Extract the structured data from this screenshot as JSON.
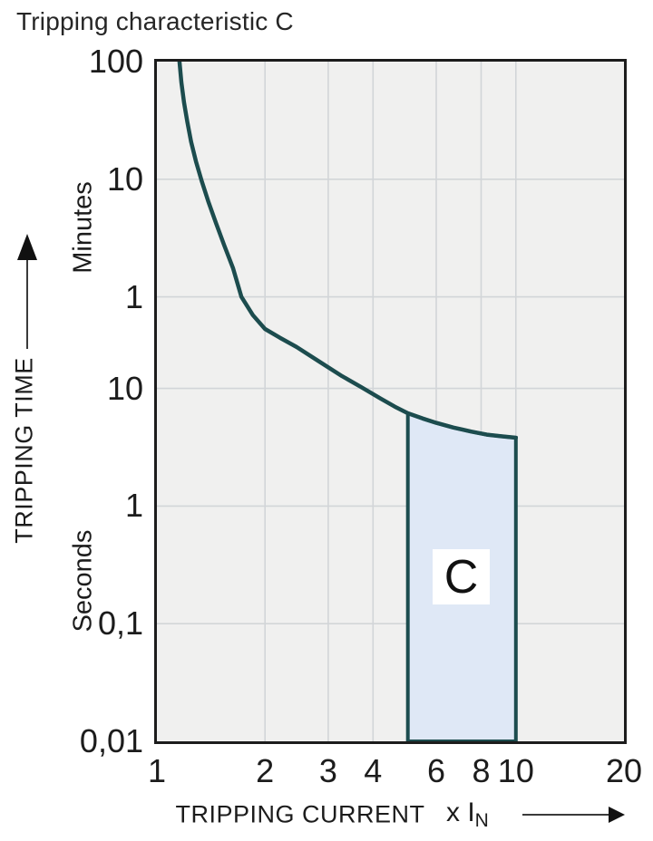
{
  "title": "Tripping characteristic C",
  "colors": {
    "curve": "#1c4c4e",
    "region_fill": "#dfe8f6",
    "region_border": "#1c4c4e",
    "plot_background": "#f0f0ef",
    "grid": "#d2d5d8",
    "plot_border": "#1c1c1c",
    "text": "#1c1c1c"
  },
  "y_axis": {
    "caption": "TRIPPING TIME",
    "unit_top": "Minutes",
    "unit_bottom": "Seconds",
    "ticks": [
      {
        "label": "100",
        "seconds": 6000,
        "unit": "minutes"
      },
      {
        "label": "10",
        "seconds": 600,
        "unit": "minutes"
      },
      {
        "label": "1",
        "seconds": 60,
        "unit": "minutes"
      },
      {
        "label": "10",
        "seconds": 10,
        "unit": "seconds"
      },
      {
        "label": "1",
        "seconds": 1,
        "unit": "seconds"
      },
      {
        "label": "0,1",
        "seconds": 0.1,
        "unit": "seconds"
      },
      {
        "label": "0,01",
        "seconds": 0.01,
        "unit": "seconds"
      }
    ]
  },
  "x_axis": {
    "caption": "TRIPPING CURRENT",
    "multiplier_label": "x I",
    "multiplier_sub": "N",
    "ticks": [
      {
        "label": "1",
        "x": 1
      },
      {
        "label": "2",
        "x": 2
      },
      {
        "label": "3",
        "x": 3
      },
      {
        "label": "4",
        "x": 4
      },
      {
        "label": "6",
        "x": 6
      },
      {
        "label": "8",
        "x": 8
      },
      {
        "label": "10",
        "x": 10
      },
      {
        "label": "20",
        "x": 20
      }
    ]
  },
  "chart_data": {
    "type": "line",
    "title": "Tripping characteristic C",
    "xlabel": "TRIPPING CURRENT (x IN)",
    "ylabel": "TRIPPING TIME",
    "x_scale": "log",
    "y_scale": "log",
    "x_range": [
      1,
      20
    ],
    "time_range_seconds": [
      0.01,
      6000
    ],
    "grid_x": [
      2,
      3,
      4,
      6,
      8,
      10
    ],
    "grid_t_seconds": [
      600,
      60,
      10,
      1,
      0.1
    ],
    "curve": {
      "name": "C tripping curve",
      "points_x_multiple_vs_seconds": [
        [
          1.156,
          6000
        ],
        [
          1.17,
          4000
        ],
        [
          1.19,
          2700
        ],
        [
          1.215,
          1850
        ],
        [
          1.245,
          1250
        ],
        [
          1.285,
          850
        ],
        [
          1.335,
          570
        ],
        [
          1.39,
          390
        ],
        [
          1.46,
          255
        ],
        [
          1.54,
          165
        ],
        [
          1.63,
          105
        ],
        [
          1.72,
          60
        ],
        [
          1.85,
          42
        ],
        [
          2.0,
          32
        ],
        [
          2.2,
          27
        ],
        [
          2.45,
          22.5
        ],
        [
          2.8,
          17.3
        ],
        [
          3.28,
          12.7
        ],
        [
          3.7,
          10.3
        ],
        [
          4.2,
          8.2
        ],
        [
          4.6,
          7.0
        ],
        [
          5.0,
          6.15
        ],
        [
          5.5,
          5.55
        ],
        [
          6.0,
          5.1
        ],
        [
          6.7,
          4.65
        ],
        [
          7.5,
          4.3
        ],
        [
          8.3,
          4.05
        ],
        [
          9.1,
          3.92
        ],
        [
          10.0,
          3.81
        ]
      ]
    },
    "region": {
      "label": "C",
      "x_from": 5,
      "x_to": 10,
      "t_bottom_seconds": 0.01,
      "top_follows_curve": true
    }
  }
}
